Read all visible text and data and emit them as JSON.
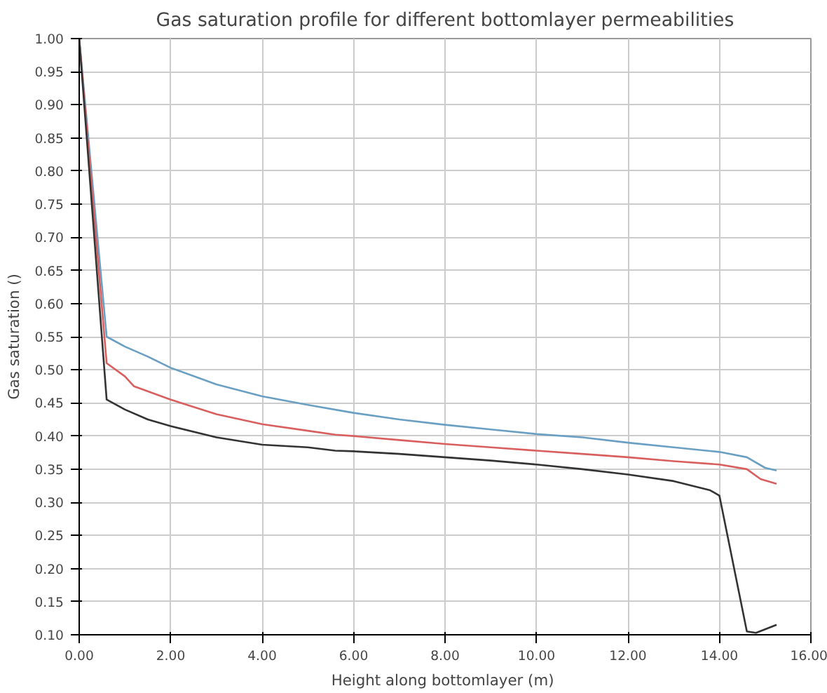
{
  "chart_data": {
    "type": "line",
    "title": "Gas saturation profile for different bottomlayer permeabilities",
    "xlabel": "Height along bottomlayer  (m)",
    "ylabel": "Gas saturation ()",
    "xlim": [
      0,
      16
    ],
    "xticks": [
      {
        "value": 0,
        "label": "0.00"
      },
      {
        "value": 2,
        "label": "2.00"
      },
      {
        "value": 4,
        "label": "4.00"
      },
      {
        "value": 6,
        "label": "6.00"
      },
      {
        "value": 8,
        "label": "8.00"
      },
      {
        "value": 10,
        "label": "10.00"
      },
      {
        "value": 12,
        "label": "12.00"
      },
      {
        "value": 14,
        "label": "14.00"
      },
      {
        "value": 16,
        "label": "16.00"
      }
    ],
    "ylim": [
      0.1,
      1.0
    ],
    "yticks": [
      {
        "value": 0.1,
        "label": "0.10"
      },
      {
        "value": 0.15,
        "label": "0.15"
      },
      {
        "value": 0.2,
        "label": "0.20"
      },
      {
        "value": 0.25,
        "label": "0.25"
      },
      {
        "value": 0.3,
        "label": "0.30"
      },
      {
        "value": 0.35,
        "label": "0.35"
      },
      {
        "value": 0.4,
        "label": "0.40"
      },
      {
        "value": 0.45,
        "label": "0.45"
      },
      {
        "value": 0.5,
        "label": "0.50"
      },
      {
        "value": 0.55,
        "label": "0.55"
      },
      {
        "value": 0.6,
        "label": "0.60"
      },
      {
        "value": 0.65,
        "label": "0.65"
      },
      {
        "value": 0.7,
        "label": "0.70"
      },
      {
        "value": 0.75,
        "label": "0.75"
      },
      {
        "value": 0.8,
        "label": "0.80"
      },
      {
        "value": 0.85,
        "label": "0.85"
      },
      {
        "value": 0.9,
        "label": "0.90"
      },
      {
        "value": 0.95,
        "label": "0.95"
      },
      {
        "value": 1.0,
        "label": "1.00"
      }
    ],
    "grid": true,
    "line_style": "solid",
    "series": [
      {
        "color": "#6a9fc4",
        "x": [
          0,
          0.6,
          1,
          1.5,
          2,
          3,
          4,
          5,
          6,
          7,
          8,
          9,
          10,
          11,
          12,
          13,
          14,
          14.6,
          15,
          15.25
        ],
        "values": [
          1.0,
          0.55,
          0.535,
          0.52,
          0.503,
          0.478,
          0.46,
          0.447,
          0.435,
          0.425,
          0.417,
          0.41,
          0.403,
          0.398,
          0.39,
          0.383,
          0.376,
          0.368,
          0.352,
          0.348
        ]
      },
      {
        "color": "#d95f5f",
        "x": [
          0,
          0.6,
          1,
          1.2,
          2,
          3,
          4,
          5,
          5.6,
          6,
          7,
          8,
          9,
          10,
          11,
          12,
          13,
          14,
          14.6,
          14.9,
          15.25
        ],
        "values": [
          1.0,
          0.51,
          0.49,
          0.475,
          0.455,
          0.433,
          0.418,
          0.408,
          0.402,
          0.4,
          0.394,
          0.388,
          0.383,
          0.378,
          0.373,
          0.368,
          0.362,
          0.357,
          0.35,
          0.335,
          0.328
        ]
      },
      {
        "color": "#333333",
        "x": [
          0,
          0.6,
          1,
          1.5,
          2,
          3,
          4,
          5,
          5.6,
          6,
          7,
          8,
          9,
          10,
          11,
          12,
          13,
          13.8,
          14,
          14.6,
          14.8,
          15.25
        ],
        "values": [
          1.0,
          0.455,
          0.44,
          0.425,
          0.415,
          0.398,
          0.387,
          0.383,
          0.378,
          0.377,
          0.373,
          0.368,
          0.363,
          0.357,
          0.35,
          0.342,
          0.332,
          0.318,
          0.31,
          0.105,
          0.103,
          0.115
        ]
      }
    ]
  }
}
